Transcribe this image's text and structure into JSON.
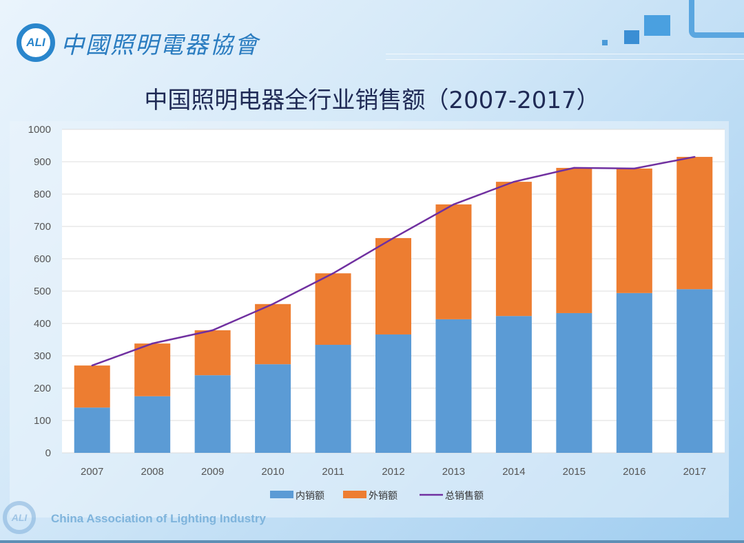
{
  "header": {
    "logo_mark": "ALI",
    "logo_text": "中國照明電器協會"
  },
  "footer": {
    "logo_mark": "ALI",
    "text": "China Association of Lighting Industry"
  },
  "chart_data": {
    "type": "bar",
    "title": "中国照明电器全行业销售额（2007-2017）",
    "stacked": true,
    "categories": [
      "2007",
      "2008",
      "2009",
      "2010",
      "2011",
      "2012",
      "2013",
      "2014",
      "2015",
      "2016",
      "2017"
    ],
    "series": [
      {
        "name": "内销额",
        "type": "bar",
        "color": "#5b9bd5",
        "values": [
          140,
          175,
          240,
          274,
          334,
          366,
          413,
          423,
          432,
          494,
          506
        ]
      },
      {
        "name": "外销额",
        "type": "bar",
        "color": "#ed7d31",
        "values": [
          130,
          163,
          139,
          186,
          221,
          298,
          355,
          415,
          449,
          385,
          409
        ]
      },
      {
        "name": "总销售额",
        "type": "line",
        "color": "#7030a0",
        "values": [
          270,
          338,
          379,
          460,
          555,
          664,
          768,
          838,
          881,
          879,
          915
        ]
      }
    ],
    "ylim": [
      0,
      1000
    ],
    "yticks": [
      "0",
      "100",
      "200",
      "300",
      "400",
      "500",
      "600",
      "700",
      "800",
      "900",
      "1000"
    ],
    "grid": true,
    "legend": "bottom",
    "xlabel": "",
    "ylabel": ""
  }
}
